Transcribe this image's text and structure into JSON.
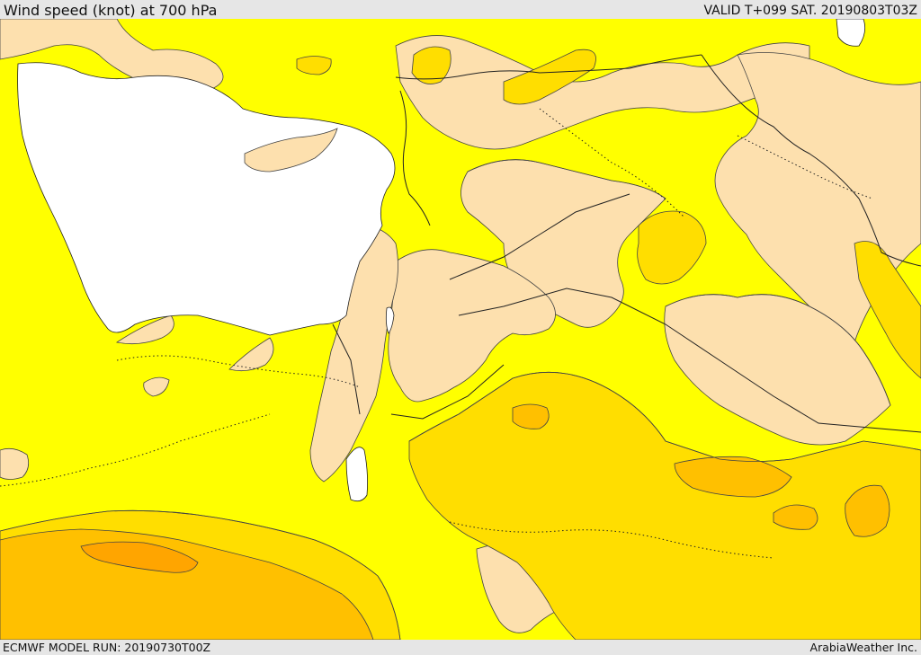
{
  "header": {
    "title": "Wind speed (knot) at 700 hPa",
    "valid": "VALID T+099 SAT. 20190803T03Z"
  },
  "footer": {
    "model_run": "ECMWF MODEL RUN: 20190730T00Z",
    "credit": "ArabiaWeather Inc."
  },
  "map": {
    "colors": {
      "sea": "#ffffff",
      "calm": "#fde0ae",
      "light": "#ffff00",
      "moderate": "#ffde00",
      "fresh": "#ffc000",
      "strong": "#ffa500",
      "contour": "#444444",
      "border": "#222222"
    }
  }
}
